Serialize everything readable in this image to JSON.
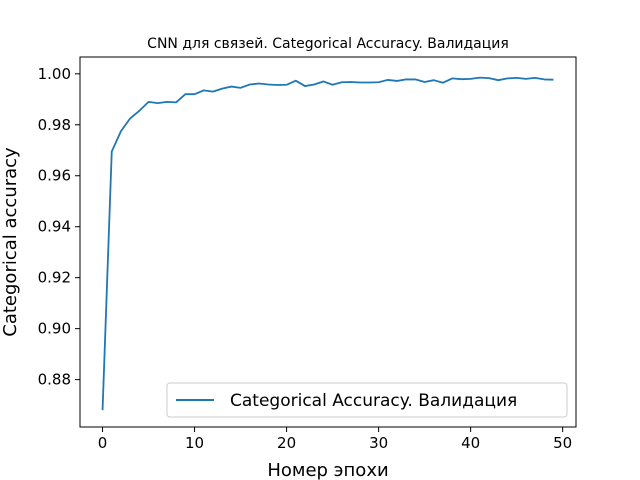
{
  "chart_data": {
    "type": "line",
    "title": "CNN для связей. Categorical Accuracy. Валидация",
    "xlabel": "Номер эпохи",
    "ylabel": "Categorical accuracy",
    "xlim": [
      -2.45,
      51.45
    ],
    "ylim": [
      0.8614,
      1.0066
    ],
    "xticks": [
      0,
      10,
      20,
      30,
      40,
      50
    ],
    "yticks": [
      0.88,
      0.9,
      0.92,
      0.94,
      0.96,
      0.98,
      1.0
    ],
    "grid": false,
    "legend_position": "lower-right",
    "series": [
      {
        "name": "Categorical Accuracy. Валидация",
        "color": "#1f77b4",
        "x": [
          0,
          1,
          2,
          3,
          4,
          5,
          6,
          7,
          8,
          9,
          10,
          11,
          12,
          13,
          14,
          15,
          16,
          17,
          18,
          19,
          20,
          21,
          22,
          23,
          24,
          25,
          26,
          27,
          28,
          29,
          30,
          31,
          32,
          33,
          34,
          35,
          36,
          37,
          38,
          39,
          40,
          41,
          42,
          43,
          44,
          45,
          46,
          47,
          48,
          49
        ],
        "values": [
          0.868,
          0.9695,
          0.9775,
          0.9825,
          0.9855,
          0.989,
          0.9885,
          0.989,
          0.9888,
          0.992,
          0.992,
          0.9935,
          0.993,
          0.9942,
          0.995,
          0.9945,
          0.9958,
          0.9962,
          0.9958,
          0.9956,
          0.9957,
          0.9973,
          0.9952,
          0.9958,
          0.997,
          0.9957,
          0.9967,
          0.9968,
          0.9966,
          0.9966,
          0.9967,
          0.9976,
          0.9972,
          0.9978,
          0.9978,
          0.9968,
          0.9975,
          0.9965,
          0.9982,
          0.9979,
          0.998,
          0.9985,
          0.9983,
          0.9975,
          0.9982,
          0.9984,
          0.998,
          0.9984,
          0.9978,
          0.9977
        ]
      }
    ]
  }
}
